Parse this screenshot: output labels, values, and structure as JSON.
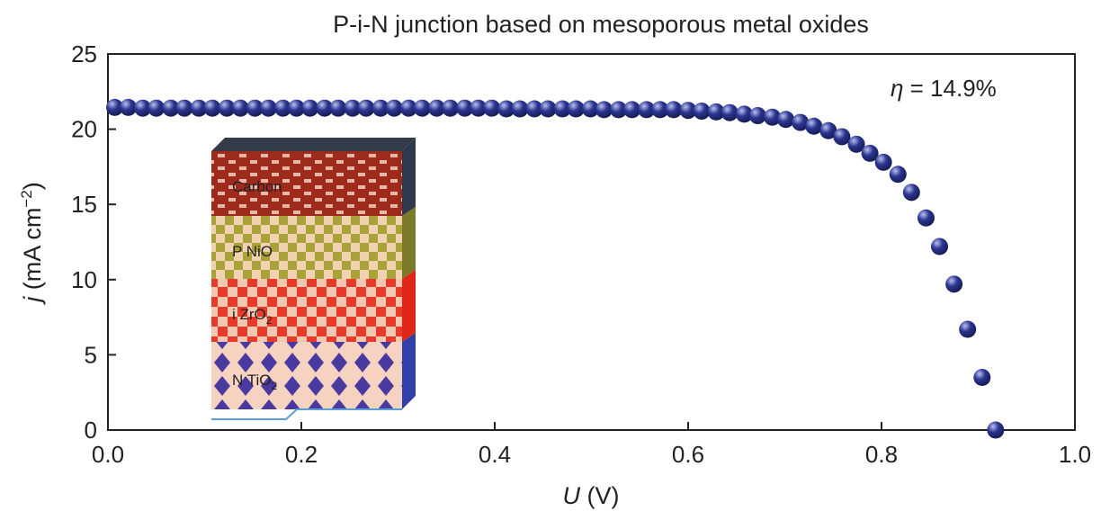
{
  "chart_data": {
    "type": "scatter",
    "title": "P-i-N junction based on mesoporous metal oxides",
    "xlabel": {
      "var": "U",
      "unit": "(V)"
    },
    "ylabel": {
      "var": "j",
      "unit": "(mA cm",
      "exp": "−2",
      "close": ")"
    },
    "annotation": {
      "var": "η",
      "text": "= 14.9%"
    },
    "inset": {
      "layers": [
        {
          "label": "Carbon"
        },
        {
          "label": "P  NiO"
        },
        {
          "label": "i  ZrO",
          "sub": "2"
        },
        {
          "label": "N  TiO",
          "sub": "2"
        }
      ]
    },
    "xlim": [
      0,
      1
    ],
    "ylim": [
      0,
      25
    ],
    "xticks": [
      {
        "value": 0,
        "label": "0.0"
      },
      0.2,
      0.4,
      0.6,
      0.8,
      {
        "value": 1,
        "label": "1.0"
      }
    ],
    "yticks": [
      0,
      5,
      10,
      15,
      20,
      25
    ],
    "color": "#2b3590",
    "x": [
      0.007,
      0.021,
      0.036,
      0.05,
      0.065,
      0.079,
      0.094,
      0.108,
      0.123,
      0.137,
      0.152,
      0.166,
      0.181,
      0.195,
      0.209,
      0.224,
      0.238,
      0.253,
      0.267,
      0.282,
      0.296,
      0.311,
      0.325,
      0.34,
      0.354,
      0.369,
      0.383,
      0.397,
      0.412,
      0.426,
      0.441,
      0.455,
      0.47,
      0.484,
      0.499,
      0.513,
      0.528,
      0.542,
      0.557,
      0.571,
      0.585,
      0.6,
      0.614,
      0.629,
      0.643,
      0.658,
      0.672,
      0.687,
      0.701,
      0.716,
      0.73,
      0.745,
      0.759,
      0.774,
      0.788,
      0.802,
      0.817,
      0.831,
      0.846,
      0.86,
      0.875,
      0.889,
      0.904,
      0.918
    ],
    "values": [
      21.45,
      21.45,
      21.4,
      21.4,
      21.4,
      21.4,
      21.4,
      21.4,
      21.4,
      21.4,
      21.4,
      21.4,
      21.4,
      21.4,
      21.4,
      21.4,
      21.4,
      21.4,
      21.4,
      21.4,
      21.4,
      21.4,
      21.4,
      21.4,
      21.4,
      21.4,
      21.4,
      21.4,
      21.35,
      21.35,
      21.35,
      21.35,
      21.35,
      21.35,
      21.35,
      21.3,
      21.3,
      21.3,
      21.3,
      21.3,
      21.3,
      21.25,
      21.2,
      21.15,
      21.1,
      21.0,
      20.9,
      20.8,
      20.65,
      20.45,
      20.2,
      19.9,
      19.5,
      19.0,
      18.4,
      17.8,
      17.0,
      15.8,
      14.1,
      12.2,
      9.7,
      6.7,
      3.5,
      0
    ]
  }
}
